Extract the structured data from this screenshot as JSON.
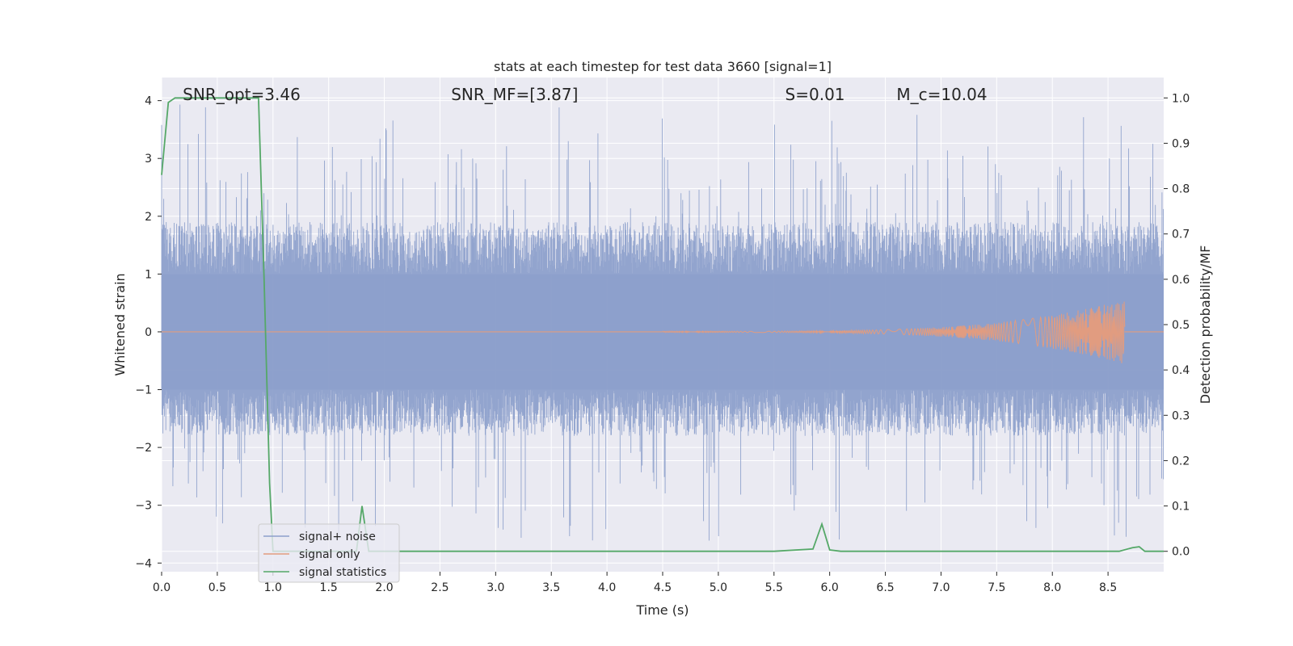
{
  "chart_data": {
    "type": "line",
    "title": "stats at each timestep for test data 3660 [signal=1]",
    "xlabel": "Time (s)",
    "ylabel": "Whitened strain",
    "y2label": "Detection probability/MF",
    "xlim": [
      0,
      9.0
    ],
    "ylim": [
      -4.15,
      4.4
    ],
    "y2lim": [
      -0.045,
      1.045
    ],
    "x_ticks": [
      0.0,
      0.5,
      1.0,
      1.5,
      2.0,
      2.5,
      3.0,
      3.5,
      4.0,
      4.5,
      5.0,
      5.5,
      6.0,
      6.5,
      7.0,
      7.5,
      8.0,
      8.5
    ],
    "x_tick_labels": [
      "0.0",
      "0.5",
      "1.0",
      "1.5",
      "2.0",
      "2.5",
      "3.0",
      "3.5",
      "4.0",
      "4.5",
      "5.0",
      "5.5",
      "6.0",
      "6.5",
      "7.0",
      "7.5",
      "8.0",
      "8.5"
    ],
    "y_ticks": [
      -4,
      -3,
      -2,
      -1,
      0,
      1,
      2,
      3,
      4
    ],
    "y_tick_labels": [
      "−4",
      "−3",
      "−2",
      "−1",
      "0",
      "1",
      "2",
      "3",
      "4"
    ],
    "y2_ticks": [
      0.0,
      0.1,
      0.2,
      0.3,
      0.4,
      0.5,
      0.6,
      0.7,
      0.8,
      0.9,
      1.0
    ],
    "y2_tick_labels": [
      "0.0",
      "0.1",
      "0.2",
      "0.3",
      "0.4",
      "0.5",
      "0.6",
      "0.7",
      "0.8",
      "0.9",
      "1.0"
    ],
    "grid": true,
    "legend_placement": "lower-left",
    "annotations": [
      {
        "key": "snr-opt",
        "text": "SNR_opt=3.46",
        "x": 0.19
      },
      {
        "key": "snr-mf",
        "text": "SNR_MF=[3.87]",
        "x": 2.6
      },
      {
        "key": "s-value",
        "text": "S=0.01",
        "x": 5.6
      },
      {
        "key": "mc-value",
        "text": "M_c=10.04",
        "x": 6.6
      }
    ],
    "series": [
      {
        "name": "signal+ noise",
        "axis": "left",
        "color": "#8da0cb",
        "description": "whitened strain, noise band roughly between -1.6 and 1.8 with spikes up to about 4"
      },
      {
        "name": "signal only",
        "axis": "left",
        "color": "#e19c80",
        "chirp": {
          "start": 4.5,
          "end": 8.65,
          "peak_amplitude": 0.55
        }
      },
      {
        "name": "signal statistics",
        "axis": "right",
        "color": "#55a868",
        "x": [
          0.0,
          0.06,
          0.12,
          0.3,
          0.5,
          0.7,
          0.87,
          0.92,
          0.97,
          1.0,
          1.3,
          1.75,
          1.8,
          1.86,
          2.0,
          3.0,
          4.0,
          5.0,
          5.5,
          5.85,
          5.93,
          6.0,
          6.1,
          7.0,
          8.0,
          8.6,
          8.72,
          8.78,
          8.83,
          9.0
        ],
        "y": [
          0.83,
          0.99,
          1.0,
          1.0,
          1.0,
          1.0,
          1.0,
          0.6,
          0.15,
          0.0,
          0.0,
          0.0,
          0.1,
          0.0,
          0.0,
          0.0,
          0.0,
          0.0,
          0.0,
          0.005,
          0.06,
          0.003,
          0.0,
          0.0,
          0.0,
          0.0,
          0.008,
          0.01,
          0.0,
          0.0
        ]
      }
    ]
  }
}
